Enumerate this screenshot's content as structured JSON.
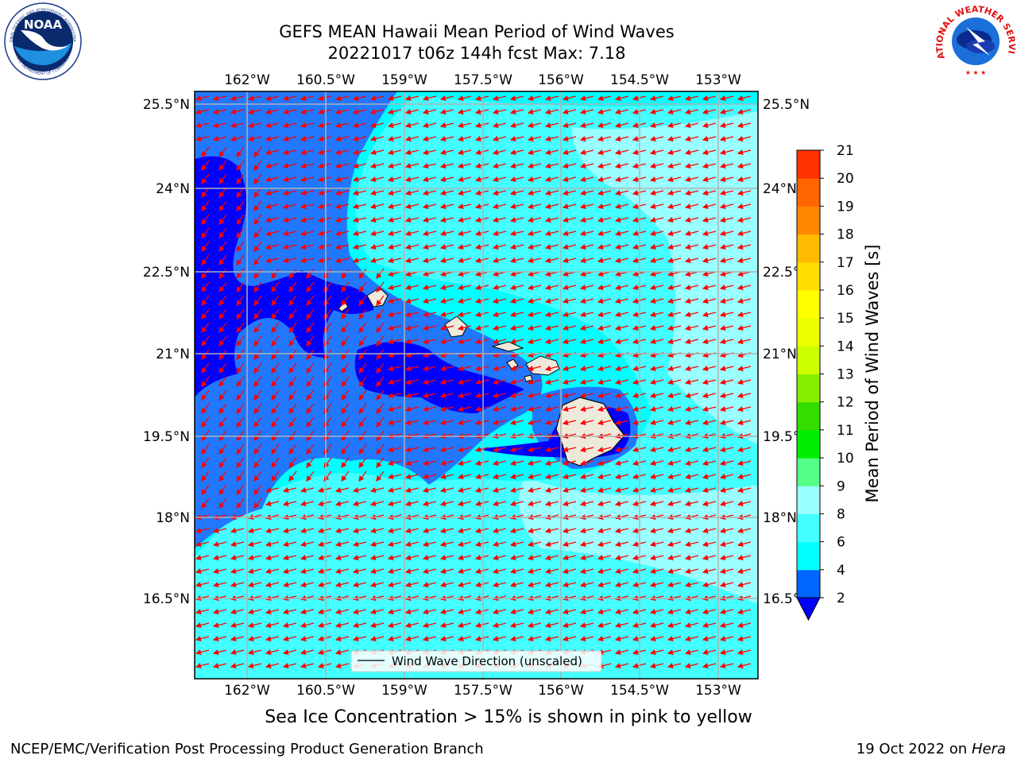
{
  "title": {
    "line1": "GEFS MEAN Hawaii Mean Period of Wind Waves",
    "line2": "20221017 t06z 144h fcst   Max: 7.18"
  },
  "map": {
    "lon_labels": [
      "162°W",
      "160.5°W",
      "159°W",
      "157.5°W",
      "156°W",
      "154.5°W",
      "153°W"
    ],
    "lat_labels": [
      "25.5°N",
      "24°N",
      "22.5°N",
      "21°N",
      "19.5°N",
      "18°N",
      "16.5°N"
    ],
    "legend_label": "Wind Wave Direction (unscaled)",
    "arrow_color": "#ff0000",
    "grid_color": "#b0b0b0"
  },
  "colorbar": {
    "label": "Mean Period of Wind Waves [s]",
    "ticks": [
      "2",
      "4",
      "6",
      "8",
      "9",
      "10",
      "11",
      "12",
      "13",
      "14",
      "15",
      "16",
      "17",
      "18",
      "19",
      "20",
      "21"
    ],
    "colors": [
      "#0066ff",
      "#00ffff",
      "#44ffff",
      "#99ffff",
      "#55ff88",
      "#00ee00",
      "#33dd00",
      "#88ee00",
      "#ccff00",
      "#eeff00",
      "#ffff00",
      "#ffdd00",
      "#ffbb00",
      "#ff8800",
      "#ff6600",
      "#ff3300"
    ],
    "under_color": "#0000ff"
  },
  "caption": "Sea Ice Concentration > 15% is shown in pink to yellow",
  "footer": {
    "left": "NCEP/EMC/Verification Post Processing Product Generation Branch",
    "date": "19 Oct 2022 on ",
    "machine": "Hera"
  },
  "logos": {
    "noaa_text": "NOAA",
    "noaa_ring": "NATIONAL OCEANIC AND ATMOSPHERIC ADMINISTRATION",
    "noaa_ring2": "U.S. DEPARTMENT OF COMMERCE",
    "nws_ring": "NATIONAL WEATHER SERVICE"
  }
}
